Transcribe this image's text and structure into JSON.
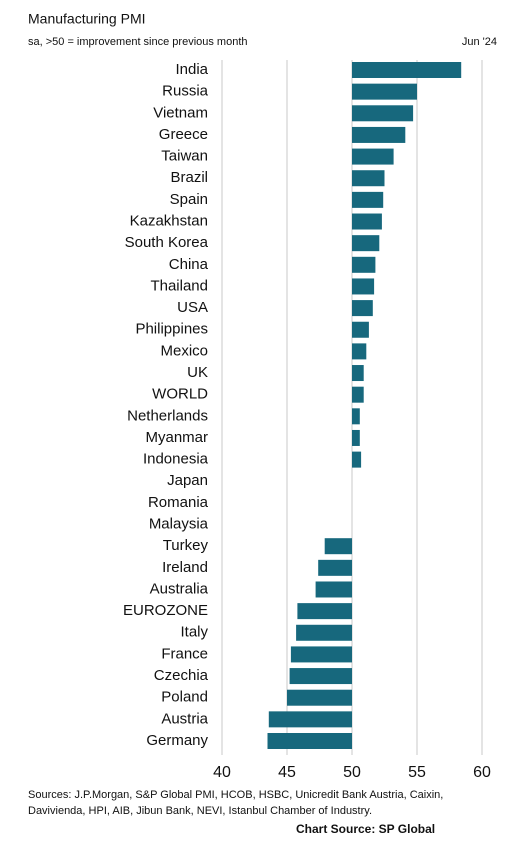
{
  "chart_data": {
    "type": "bar",
    "orientation": "horizontal",
    "title": "Manufacturing PMI",
    "subtitle": "sa, >50 = improvement since previous month",
    "date_label": "Jun '24",
    "categories": [
      "India",
      "Russia",
      "Vietnam",
      "Greece",
      "Taiwan",
      "Brazil",
      "Spain",
      "Kazakhstan",
      "South Korea",
      "China",
      "Thailand",
      "USA",
      "Philippines",
      "Mexico",
      "UK",
      "WORLD",
      "Netherlands",
      "Myanmar",
      "Indonesia",
      "Japan",
      "Romania",
      "Malaysia",
      "Turkey",
      "Ireland",
      "Australia",
      "EUROZONE",
      "Italy",
      "France",
      "Czechia",
      "Poland",
      "Austria",
      "Germany"
    ],
    "values": [
      58.4,
      55.0,
      54.7,
      54.1,
      53.2,
      52.5,
      52.4,
      52.3,
      52.1,
      51.8,
      51.7,
      51.6,
      51.3,
      51.1,
      50.9,
      50.9,
      50.6,
      50.6,
      50.7,
      50.0,
      50.0,
      50.0,
      47.9,
      47.4,
      47.2,
      45.8,
      45.7,
      45.3,
      45.2,
      45.0,
      43.6,
      43.5
    ],
    "color": "#17687d",
    "base": 50,
    "xlim": [
      40,
      60
    ],
    "xticks": [
      40,
      45,
      50,
      55,
      60
    ],
    "grid": true,
    "sources": [
      "Sources: J.P.Morgan, S&P Global PMI, HCOB, HSBC, Unicredit Bank Austria, Caixin,",
      "Davivienda, HPI, AIB, Jibun Bank, NEVI, Istanbul Chamber of Industry."
    ],
    "chart_source": "Chart Source: SP Global"
  }
}
